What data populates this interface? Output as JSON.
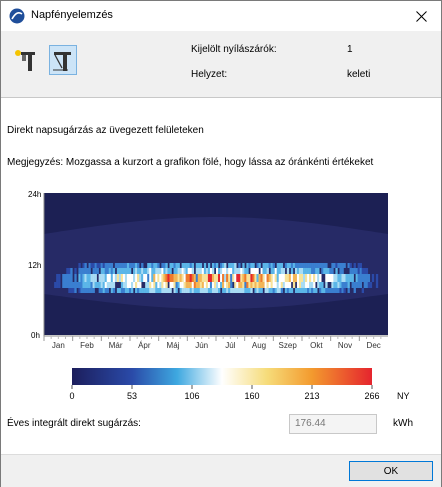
{
  "window": {
    "title": "Napfényelemzés"
  },
  "info": {
    "selected_label": "Kijelölt nyílászárók:",
    "selected_value": "1",
    "position_label": "Helyzet:",
    "position_value": "keleti"
  },
  "main": {
    "heading": "Direkt napsugárzás az üvegezett felületeken",
    "note": "Megjegyzés: Mozgassa a kurzort a grafikon fölé, hogy lássa az óránkénti értékeket"
  },
  "chart_data": {
    "type": "heatmap",
    "y_ticks": [
      "24h",
      "12h",
      "0h"
    ],
    "months": [
      "Jan",
      "Feb",
      "Már",
      "Ápr",
      "Máj",
      "Jún",
      "Júl",
      "Aug",
      "Szep",
      "Okt",
      "Nov",
      "Dec"
    ],
    "legend": {
      "ticks": [
        "0",
        "53",
        "106",
        "160",
        "213",
        "266"
      ],
      "unit": "NY",
      "min": 0,
      "max": 266
    },
    "colors": {
      "background": "#262a66",
      "night": "#1c2054"
    }
  },
  "annual": {
    "label": "Éves integrált direkt sugárzás:",
    "value": "176.44",
    "unit": "kWh"
  },
  "footer": {
    "ok_label": "OK"
  }
}
